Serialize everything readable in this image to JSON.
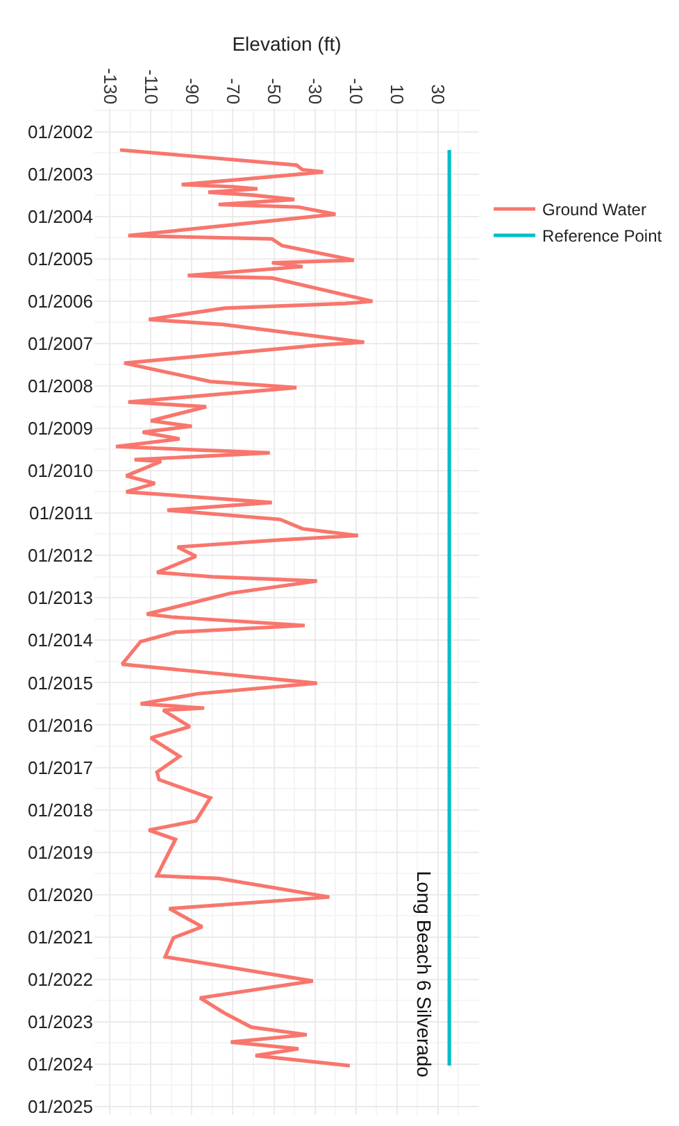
{
  "chart_data": {
    "type": "line",
    "title": "Long Beach 6 Silverado",
    "xlabel": "Elevation (ft)",
    "orientation": "horizontal",
    "xlim": [
      -137.5,
      50
    ],
    "xticks": [
      -130,
      -110,
      -90,
      -70,
      -50,
      -30,
      -10,
      10,
      30
    ],
    "ylim": [
      "2025-03-14",
      "2001-06-13"
    ],
    "yticks": [
      {
        "value": "2002-01-01",
        "label": "01/2002"
      },
      {
        "value": "2003-01-01",
        "label": "01/2003"
      },
      {
        "value": "2004-01-01",
        "label": "01/2004"
      },
      {
        "value": "2005-01-01",
        "label": "01/2005"
      },
      {
        "value": "2006-01-01",
        "label": "01/2006"
      },
      {
        "value": "2007-01-01",
        "label": "01/2007"
      },
      {
        "value": "2008-01-01",
        "label": "01/2008"
      },
      {
        "value": "2009-01-01",
        "label": "01/2009"
      },
      {
        "value": "2010-01-01",
        "label": "01/2010"
      },
      {
        "value": "2011-01-01",
        "label": "01/2011"
      },
      {
        "value": "2012-01-01",
        "label": "01/2012"
      },
      {
        "value": "2013-01-01",
        "label": "01/2013"
      },
      {
        "value": "2014-01-01",
        "label": "01/2014"
      },
      {
        "value": "2015-01-01",
        "label": "01/2015"
      },
      {
        "value": "2016-01-01",
        "label": "01/2016"
      },
      {
        "value": "2017-01-01",
        "label": "01/2017"
      },
      {
        "value": "2018-01-01",
        "label": "01/2018"
      },
      {
        "value": "2019-01-01",
        "label": "01/2019"
      },
      {
        "value": "2020-01-01",
        "label": "01/2020"
      },
      {
        "value": "2021-01-01",
        "label": "01/2021"
      },
      {
        "value": "2022-01-01",
        "label": "01/2022"
      },
      {
        "value": "2023-01-01",
        "label": "01/2023"
      },
      {
        "value": "2024-01-01",
        "label": "01/2024"
      },
      {
        "value": "2025-01-01",
        "label": "01/2025"
      }
    ],
    "grid": true,
    "legend": "right",
    "series": [
      {
        "name": "Ground Water",
        "color": "#f8766d",
        "x": [
          "2002-06-07",
          "2002-10-16",
          "2002-11-25",
          "2002-12-13",
          "2003-01-05",
          "2003-04-01",
          "2003-04-20",
          "2003-05-08",
          "2003-06-06",
          "2003-07-02",
          "2003-08-08",
          "2003-09-20",
          "2003-10-12",
          "2003-12-13",
          "2004-06-14",
          "2004-07-13",
          "2004-09-09",
          "2005-01-12",
          "2005-02-03",
          "2005-03-08",
          "2005-05-24",
          "2005-06-03",
          "2005-06-14",
          "2006-01-01",
          "2006-01-20",
          "2006-03-01",
          "2006-06-07",
          "2006-07-20",
          "2006-12-20",
          "2007-01-12",
          "2007-06-18",
          "2007-11-24",
          "2008-01-15",
          "2008-05-18",
          "2008-06-28",
          "2008-10-27",
          "2008-12-13",
          "2009-02-03",
          "2009-04-01",
          "2009-06-06",
          "2009-07-31",
          "2009-09-27",
          "2009-10-12",
          "2010-02-14",
          "2010-04-20",
          "2010-07-02",
          "2010-10-01",
          "2010-12-06",
          "2011-02-24",
          "2011-05-16",
          "2011-07-13",
          "2011-08-22",
          "2011-10-20",
          "2012-01-08",
          "2012-05-26",
          "2012-07-02",
          "2012-08-08",
          "2012-11-21",
          "2013-05-20",
          "2013-06-14",
          "2013-08-26",
          "2013-10-23",
          "2014-01-12",
          "2014-07-27",
          "2015-01-05",
          "2015-04-06",
          "2015-07-02",
          "2015-08-08",
          "2015-08-26",
          "2016-01-15",
          "2016-04-22",
          "2016-09-27",
          "2017-02-10",
          "2017-04-16",
          "2017-09-20",
          "2018-04-06",
          "2018-06-25",
          "2018-09-13",
          "2019-07-24",
          "2019-08-15",
          "2020-01-23",
          "2020-05-01",
          "2020-10-05",
          "2021-01-08",
          "2021-06-21",
          "2022-01-15",
          "2022-06-10",
          "2022-10-20",
          "2023-02-17",
          "2023-04-23",
          "2023-06-25",
          "2023-08-22",
          "2023-10-20",
          "2024-01-15"
        ],
        "values": [
          -125,
          -39,
          -36,
          -26,
          -39,
          -95,
          -70,
          -58,
          -82,
          -60,
          -40,
          -77,
          -38,
          -20,
          -121,
          -51,
          -46,
          -11,
          -51,
          -36,
          -92,
          -77,
          -51,
          -2,
          -15,
          -74,
          -111,
          -75,
          -6,
          -27,
          -123,
          -81,
          -39,
          -121,
          -83,
          -110,
          -90,
          -114,
          -96,
          -127,
          -52,
          -118,
          -105,
          -122,
          -108,
          -122,
          -51,
          -102,
          -47,
          -36,
          -9,
          -49,
          -97,
          -88,
          -107,
          -80,
          -29,
          -71,
          -112,
          -100,
          -35,
          -98,
          -115,
          -124,
          -29,
          -87,
          -115,
          -84,
          -104,
          -91,
          -110,
          -96,
          -107,
          -106,
          -81,
          -88,
          -111,
          -98,
          -107,
          -77,
          -23,
          -101,
          -85,
          -99,
          -103,
          -31,
          -86,
          -74,
          -61,
          -34,
          -71,
          -38,
          -59,
          -13
        ]
      },
      {
        "name": "Reference Point",
        "color": "#00bfc4",
        "x": [
          "2002-06-07",
          "2024-01-15"
        ],
        "values": [
          35.5,
          35.5
        ]
      }
    ]
  }
}
